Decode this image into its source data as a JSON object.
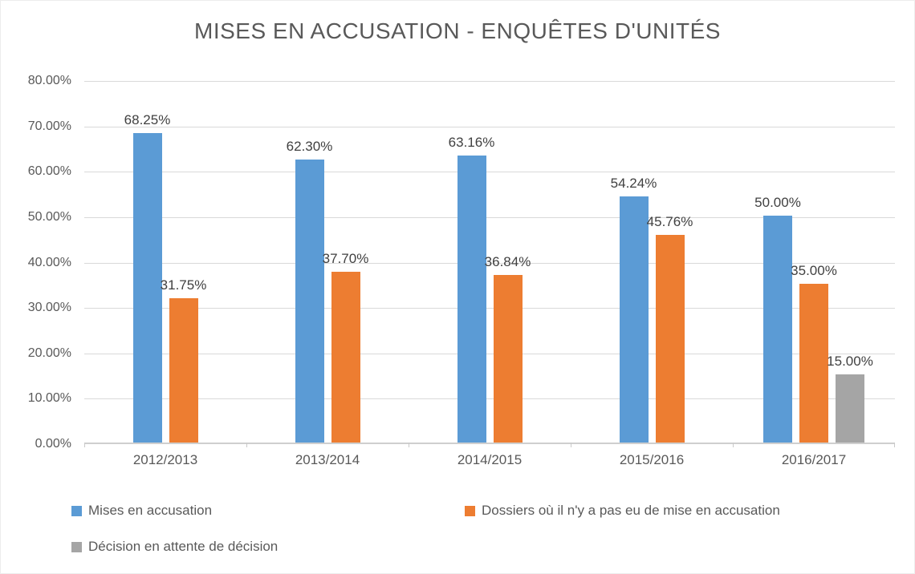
{
  "chart_data": {
    "type": "bar",
    "title": "MISES EN ACCUSATION - ENQUÊTES D'UNITÉS",
    "categories": [
      "2012/2013",
      "2013/2014",
      "2014/2015",
      "2015/2016",
      "2016/2017"
    ],
    "series": [
      {
        "name": "Mises en accusation",
        "color": "#5B9BD5",
        "values": [
          68.25,
          62.3,
          63.16,
          54.24,
          50.0
        ]
      },
      {
        "name": "Dossiers où il n'y a pas eu de mise en accusation",
        "color": "#ED7D31",
        "values": [
          31.75,
          37.7,
          36.84,
          45.76,
          35.0
        ]
      },
      {
        "name": "Décision en attente de décision",
        "color": "#A5A5A5",
        "values": [
          null,
          null,
          null,
          null,
          15.0
        ]
      }
    ],
    "ylim": [
      0,
      80
    ],
    "ytick_step": 10,
    "ytick_labels": [
      "0.00%",
      "10.00%",
      "20.00%",
      "30.00%",
      "40.00%",
      "50.00%",
      "60.00%",
      "70.00%",
      "80.00%"
    ],
    "value_label_format": "percent-2dp",
    "grid": true,
    "legend_position": "bottom"
  }
}
